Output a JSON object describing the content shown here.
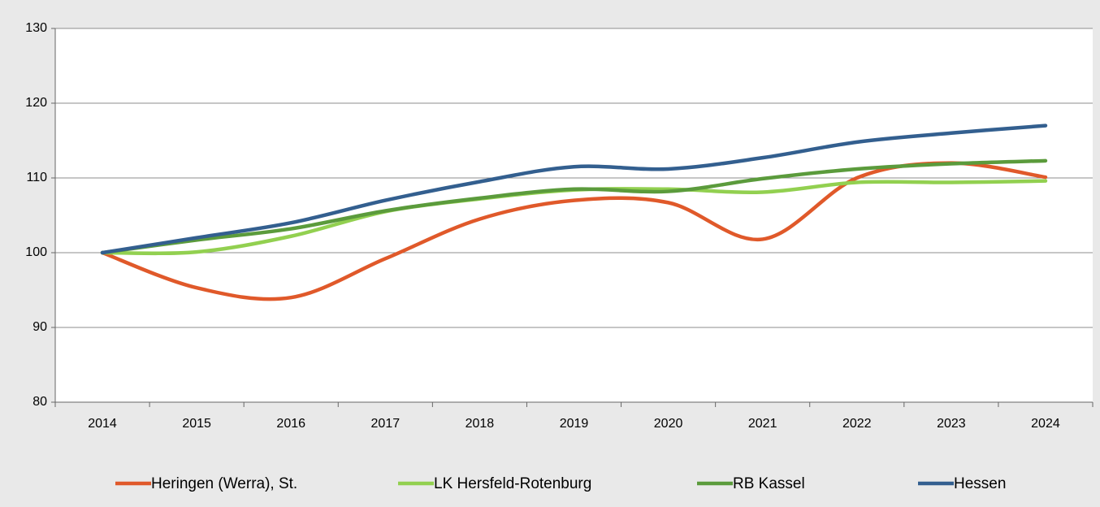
{
  "chart_data": {
    "type": "line",
    "categories": [
      "2014",
      "2015",
      "2016",
      "2017",
      "2018",
      "2019",
      "2020",
      "2021",
      "2022",
      "2023",
      "2024"
    ],
    "series": [
      {
        "name": "Heringen (Werra), St.",
        "color": "#e0592a",
        "values": [
          100,
          95.3,
          94.0,
          99.2,
          104.5,
          107.0,
          106.7,
          101.8,
          110.0,
          112.0,
          110.1
        ]
      },
      {
        "name": "LK Hersfeld-Rotenburg",
        "color": "#92d050",
        "values": [
          100,
          100.1,
          102.2,
          105.5,
          107.2,
          108.4,
          108.5,
          108.1,
          109.4,
          109.4,
          109.6
        ]
      },
      {
        "name": "RB Kassel",
        "color": "#5b9b3c",
        "values": [
          100,
          101.7,
          103.2,
          105.6,
          107.3,
          108.5,
          108.2,
          109.9,
          111.2,
          111.9,
          112.3
        ]
      },
      {
        "name": "Hessen",
        "color": "#335f8f",
        "values": [
          100,
          102.0,
          104.0,
          107.0,
          109.5,
          111.5,
          111.2,
          112.7,
          114.8,
          116.0,
          117.0
        ]
      }
    ],
    "ylim": [
      80,
      130
    ],
    "yticks": [
      80,
      90,
      100,
      110,
      120,
      130
    ],
    "grid": true,
    "legend": "bottom"
  }
}
